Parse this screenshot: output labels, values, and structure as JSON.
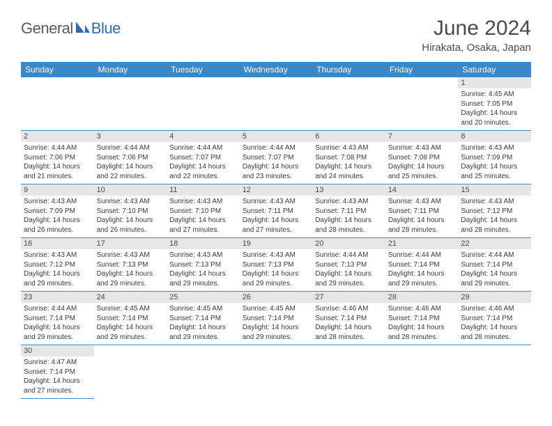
{
  "brand": {
    "text1": "General",
    "text2": "Blue"
  },
  "title": "June 2024",
  "location": "Hirakata, Osaka, Japan",
  "header_bg": "#3b87c8",
  "date_bg": "#e6e6e6",
  "weekdays": [
    "Sunday",
    "Monday",
    "Tuesday",
    "Wednesday",
    "Thursday",
    "Friday",
    "Saturday"
  ],
  "weeks": [
    [
      null,
      null,
      null,
      null,
      null,
      null,
      {
        "n": "1",
        "sr": "4:45 AM",
        "ss": "7:05 PM",
        "dl": "14 hours and 20 minutes."
      }
    ],
    [
      {
        "n": "2",
        "sr": "4:44 AM",
        "ss": "7:06 PM",
        "dl": "14 hours and 21 minutes."
      },
      {
        "n": "3",
        "sr": "4:44 AM",
        "ss": "7:06 PM",
        "dl": "14 hours and 22 minutes."
      },
      {
        "n": "4",
        "sr": "4:44 AM",
        "ss": "7:07 PM",
        "dl": "14 hours and 22 minutes."
      },
      {
        "n": "5",
        "sr": "4:44 AM",
        "ss": "7:07 PM",
        "dl": "14 hours and 23 minutes."
      },
      {
        "n": "6",
        "sr": "4:43 AM",
        "ss": "7:08 PM",
        "dl": "14 hours and 24 minutes."
      },
      {
        "n": "7",
        "sr": "4:43 AM",
        "ss": "7:08 PM",
        "dl": "14 hours and 25 minutes."
      },
      {
        "n": "8",
        "sr": "4:43 AM",
        "ss": "7:09 PM",
        "dl": "14 hours and 25 minutes."
      }
    ],
    [
      {
        "n": "9",
        "sr": "4:43 AM",
        "ss": "7:09 PM",
        "dl": "14 hours and 26 minutes."
      },
      {
        "n": "10",
        "sr": "4:43 AM",
        "ss": "7:10 PM",
        "dl": "14 hours and 26 minutes."
      },
      {
        "n": "11",
        "sr": "4:43 AM",
        "ss": "7:10 PM",
        "dl": "14 hours and 27 minutes."
      },
      {
        "n": "12",
        "sr": "4:43 AM",
        "ss": "7:11 PM",
        "dl": "14 hours and 27 minutes."
      },
      {
        "n": "13",
        "sr": "4:43 AM",
        "ss": "7:11 PM",
        "dl": "14 hours and 28 minutes."
      },
      {
        "n": "14",
        "sr": "4:43 AM",
        "ss": "7:11 PM",
        "dl": "14 hours and 28 minutes."
      },
      {
        "n": "15",
        "sr": "4:43 AM",
        "ss": "7:12 PM",
        "dl": "14 hours and 28 minutes."
      }
    ],
    [
      {
        "n": "16",
        "sr": "4:43 AM",
        "ss": "7:12 PM",
        "dl": "14 hours and 29 minutes."
      },
      {
        "n": "17",
        "sr": "4:43 AM",
        "ss": "7:13 PM",
        "dl": "14 hours and 29 minutes."
      },
      {
        "n": "18",
        "sr": "4:43 AM",
        "ss": "7:13 PM",
        "dl": "14 hours and 29 minutes."
      },
      {
        "n": "19",
        "sr": "4:43 AM",
        "ss": "7:13 PM",
        "dl": "14 hours and 29 minutes."
      },
      {
        "n": "20",
        "sr": "4:44 AM",
        "ss": "7:13 PM",
        "dl": "14 hours and 29 minutes."
      },
      {
        "n": "21",
        "sr": "4:44 AM",
        "ss": "7:14 PM",
        "dl": "14 hours and 29 minutes."
      },
      {
        "n": "22",
        "sr": "4:44 AM",
        "ss": "7:14 PM",
        "dl": "14 hours and 29 minutes."
      }
    ],
    [
      {
        "n": "23",
        "sr": "4:44 AM",
        "ss": "7:14 PM",
        "dl": "14 hours and 29 minutes."
      },
      {
        "n": "24",
        "sr": "4:45 AM",
        "ss": "7:14 PM",
        "dl": "14 hours and 29 minutes."
      },
      {
        "n": "25",
        "sr": "4:45 AM",
        "ss": "7:14 PM",
        "dl": "14 hours and 29 minutes."
      },
      {
        "n": "26",
        "sr": "4:45 AM",
        "ss": "7:14 PM",
        "dl": "14 hours and 29 minutes."
      },
      {
        "n": "27",
        "sr": "4:46 AM",
        "ss": "7:14 PM",
        "dl": "14 hours and 28 minutes."
      },
      {
        "n": "28",
        "sr": "4:46 AM",
        "ss": "7:14 PM",
        "dl": "14 hours and 28 minutes."
      },
      {
        "n": "29",
        "sr": "4:46 AM",
        "ss": "7:14 PM",
        "dl": "14 hours and 28 minutes."
      }
    ],
    [
      {
        "n": "30",
        "sr": "4:47 AM",
        "ss": "7:14 PM",
        "dl": "14 hours and 27 minutes."
      },
      null,
      null,
      null,
      null,
      null,
      null
    ]
  ],
  "labels": {
    "sunrise": "Sunrise:",
    "sunset": "Sunset:",
    "daylight": "Daylight:"
  }
}
